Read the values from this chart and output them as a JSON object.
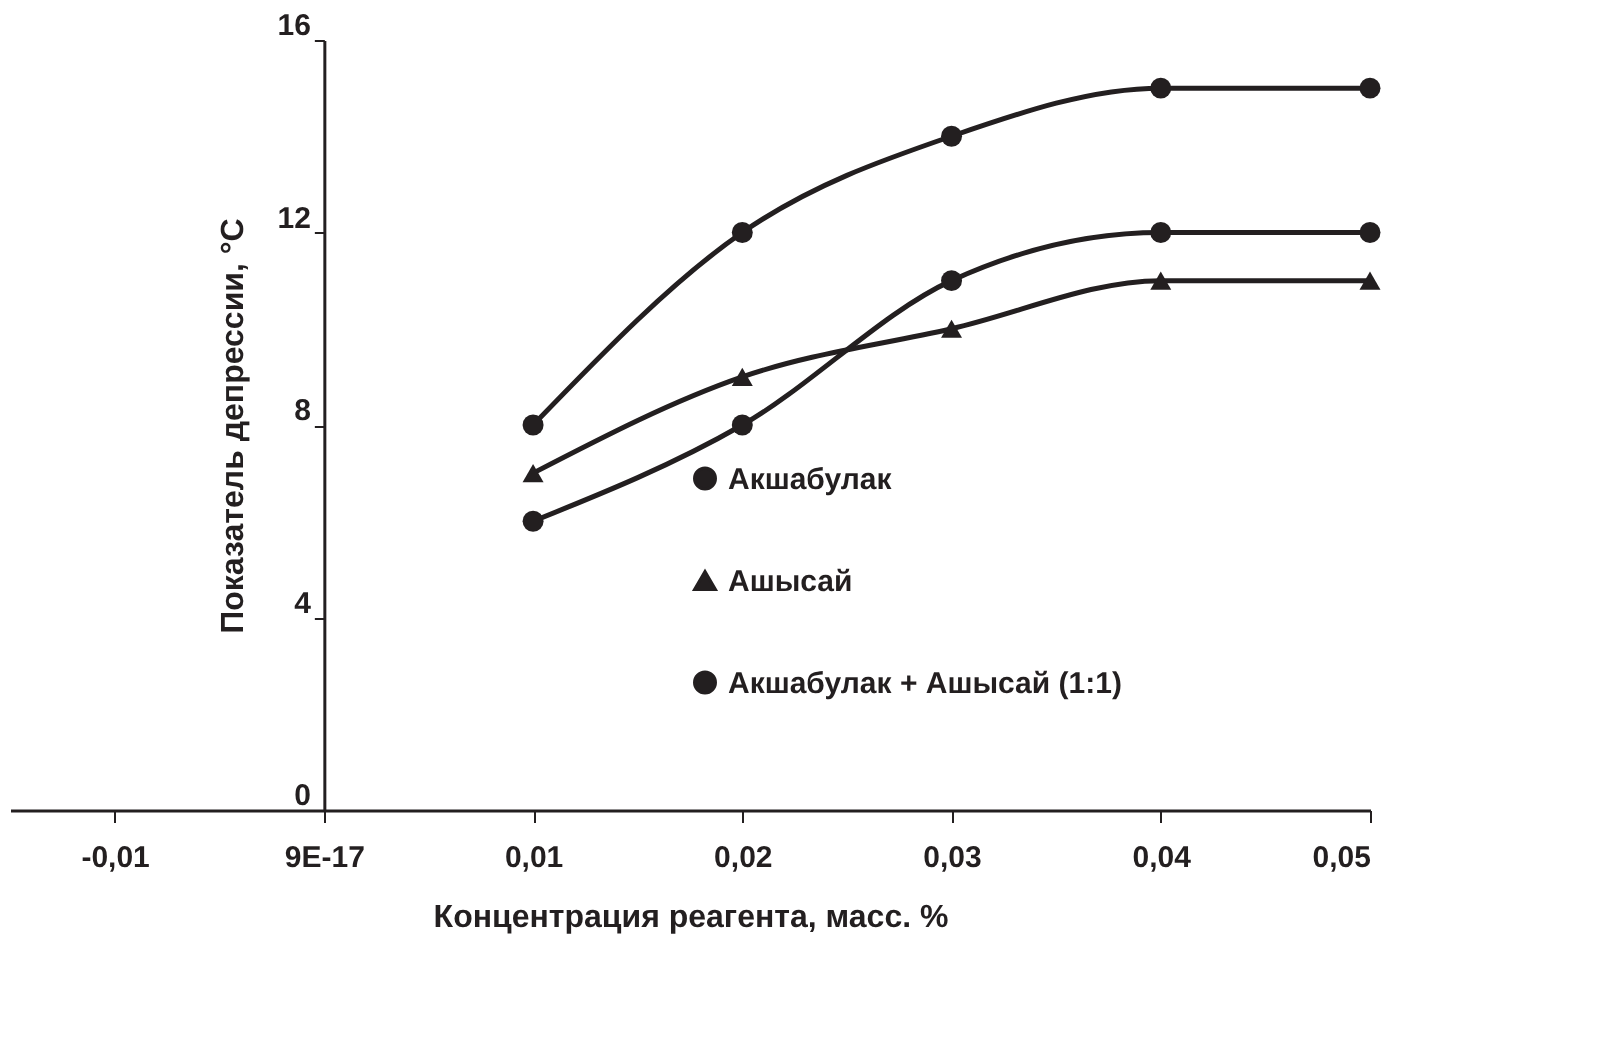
{
  "chart_data": {
    "type": "line",
    "xlabel": "Концентрация реагента, масс. %",
    "ylabel": "Показатель депрессии, °C",
    "x": [
      0.01,
      0.02,
      0.03,
      0.04,
      0.05
    ],
    "series": [
      {
        "name": "Акшабулак",
        "color": "#231f20",
        "marker": "circle",
        "values": [
          6,
          8,
          11,
          12,
          12
        ]
      },
      {
        "name": "Ашысай",
        "color": "#231f20",
        "marker": "triangle",
        "values": [
          7,
          9,
          10,
          11,
          11
        ]
      },
      {
        "name": "Акшабулак + Ашысай (1:1)",
        "color": "#231f20",
        "marker": "circle",
        "values": [
          8,
          12,
          14,
          15,
          15
        ]
      }
    ],
    "xlim": [
      -0.015,
      0.05
    ],
    "xticks": [
      {
        "value": -0.01,
        "label": "-0,01"
      },
      {
        "value": 0,
        "label": "9E-17"
      },
      {
        "value": 0.01,
        "label": "0,01"
      },
      {
        "value": 0.02,
        "label": "0,02"
      },
      {
        "value": 0.03,
        "label": "0,03"
      },
      {
        "value": 0.04,
        "label": "0,04"
      },
      {
        "value": 0.05,
        "label": "0,05"
      }
    ],
    "ylim": [
      0,
      16
    ],
    "yticks": [
      0,
      4,
      8,
      12,
      16
    ],
    "grid": false,
    "legend": "center right"
  }
}
